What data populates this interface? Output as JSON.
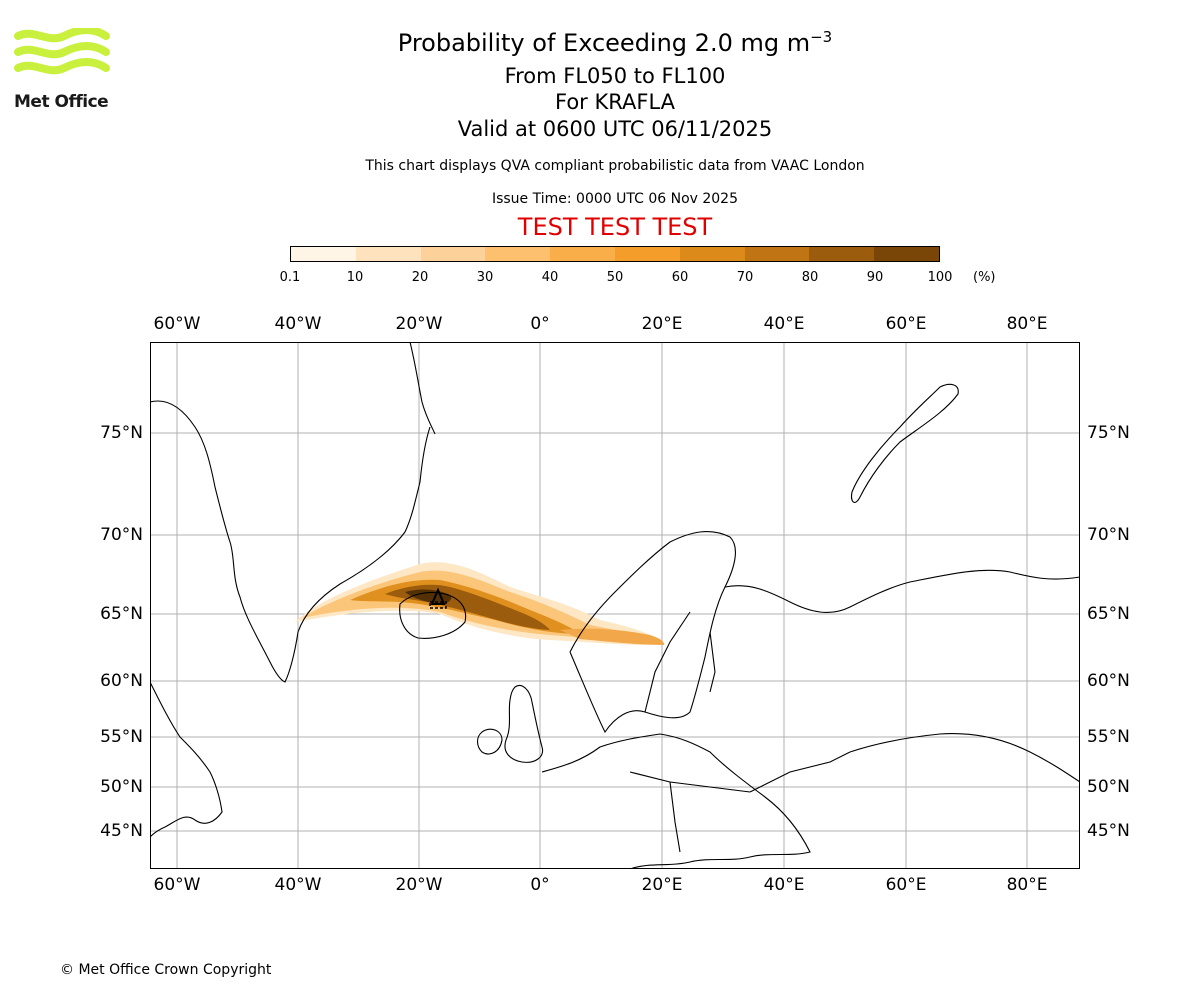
{
  "header": {
    "title_main": "Probability of Exceeding 2.0 mg m",
    "title_sup": "−3",
    "title_levels": "From FL050 to FL100",
    "title_volcano": "For KRAFLA",
    "title_valid": "Valid at 0600 UTC 06/11/2025",
    "disclaimer": "This chart displays QVA compliant probabilistic data from VAAC London",
    "issue_time": "Issue Time: 0000 UTC 06 Nov 2025",
    "test_banner": "TEST TEST TEST"
  },
  "logo": {
    "name": "Met Office",
    "color": "#c8f03c"
  },
  "colorbar": {
    "ticks": [
      "0.1",
      "10",
      "20",
      "30",
      "40",
      "50",
      "60",
      "70",
      "80",
      "90",
      "100"
    ],
    "unit": "(%)",
    "colors": [
      "#fff5e6",
      "#fee2bd",
      "#fdd29a",
      "#fcc06f",
      "#f9ae4a",
      "#f59d2a",
      "#dc8a1a",
      "#c07414",
      "#9c5c0d",
      "#7a4608",
      "#533005"
    ]
  },
  "map": {
    "lon_labels": [
      "60°W",
      "40°W",
      "20°W",
      "0°",
      "20°E",
      "40°E",
      "60°E",
      "80°E"
    ],
    "lat_labels_left": [
      "75°N",
      "70°N",
      "65°N",
      "60°N",
      "55°N",
      "50°N",
      "45°N"
    ],
    "lat_labels_right": [
      "75°N",
      "70°N",
      "65°N",
      "60°N",
      "55°N",
      "50°N",
      "45°N"
    ],
    "volcano_marker": "volcano-symbol",
    "plume": {
      "description_values": {
        "source": "KRAFLA",
        "max_probability_pct": 100
      }
    }
  },
  "footer": {
    "copyright": "© Met Office Crown Copyright"
  }
}
